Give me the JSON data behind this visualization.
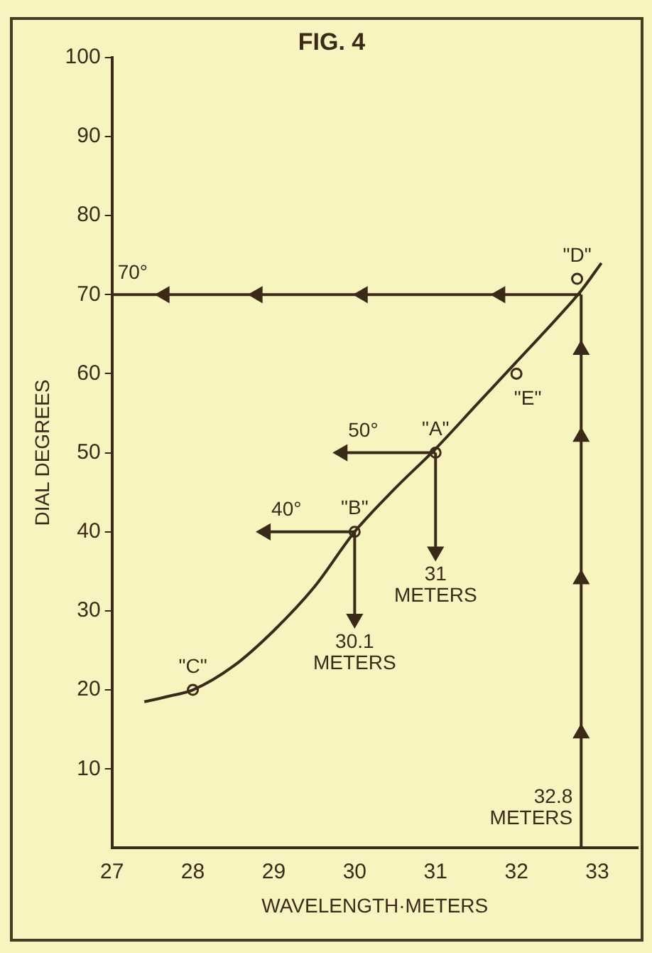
{
  "chart_data": {
    "type": "line",
    "title": "FIG. 4",
    "xlabel": "WAVELENGTH·METERS",
    "ylabel": "DIAL DEGREES",
    "xlim": [
      27,
      33.5
    ],
    "xticks": [
      27,
      28,
      29,
      30,
      31,
      32,
      33
    ],
    "ylim": [
      0,
      100
    ],
    "yticks": [
      10,
      20,
      30,
      40,
      50,
      60,
      70,
      80,
      90,
      100
    ],
    "grid": false,
    "legend": false,
    "series": [
      {
        "type": "line",
        "color": "#3b2a18",
        "x": [
          27.4,
          27.7,
          28,
          28.5,
          29,
          29.5,
          30,
          30.5,
          31,
          31.5,
          32,
          32.5,
          32.8,
          33.05
        ],
        "values": [
          18.5,
          19.2,
          20,
          23,
          27.5,
          33,
          40,
          45.5,
          50.5,
          56,
          61.5,
          67,
          70.5,
          74
        ]
      },
      {
        "type": "line",
        "marker": "triangle",
        "color": "#3b2a18",
        "x": [
          32.8,
          31.8,
          30.1,
          28.8,
          27.65,
          27
        ],
        "values": [
          70,
          70,
          70,
          70,
          70,
          70
        ]
      },
      {
        "type": "line",
        "marker": "triangle",
        "color": "#3b2a18",
        "x": [
          32.8,
          32.8,
          32.8,
          32.8,
          32.8,
          32.8
        ],
        "values": [
          0,
          14.5,
          34,
          52,
          63,
          70
        ]
      },
      {
        "type": "line",
        "marker": "triangle",
        "color": "#3b2a18",
        "x": [
          31,
          29.85
        ],
        "values": [
          50,
          50
        ]
      },
      {
        "type": "line",
        "marker": "triangle",
        "color": "#3b2a18",
        "x": [
          31,
          31
        ],
        "values": [
          50,
          37.5
        ]
      },
      {
        "type": "line",
        "marker": "triangle",
        "color": "#3b2a18",
        "x": [
          30,
          28.9
        ],
        "values": [
          40,
          40
        ]
      },
      {
        "type": "line",
        "marker": "triangle",
        "color": "#3b2a18",
        "x": [
          30,
          30
        ],
        "values": [
          40,
          29
        ]
      },
      {
        "type": "scatter",
        "marker": "circle",
        "color": "#3b2a18",
        "x": [
          28,
          30,
          31,
          32,
          32.75
        ],
        "values": [
          20,
          40,
          50,
          60,
          72
        ]
      }
    ],
    "annotations": [
      {
        "text": "70°",
        "x": 27,
        "y": 70
      },
      {
        "text": "50°",
        "x": 29.85,
        "y": 50
      },
      {
        "text": "\"A\"",
        "x": 31,
        "y": 50
      },
      {
        "text": "40°",
        "x": 28.9,
        "y": 40
      },
      {
        "text": "\"B\"",
        "x": 30,
        "y": 40
      },
      {
        "text": "\"C\"",
        "x": 28,
        "y": 20
      },
      {
        "text": "\"D\"",
        "x": 32.75,
        "y": 72
      },
      {
        "text": "\"E\"",
        "x": 32,
        "y": 60
      },
      {
        "text": "31\nMETERS",
        "x": 31,
        "y": 37.5
      },
      {
        "text": "30.1\nMETERS",
        "x": 30,
        "y": 29
      },
      {
        "text": "32.8\nMETERS",
        "x": 32.8,
        "y": 0
      }
    ]
  }
}
